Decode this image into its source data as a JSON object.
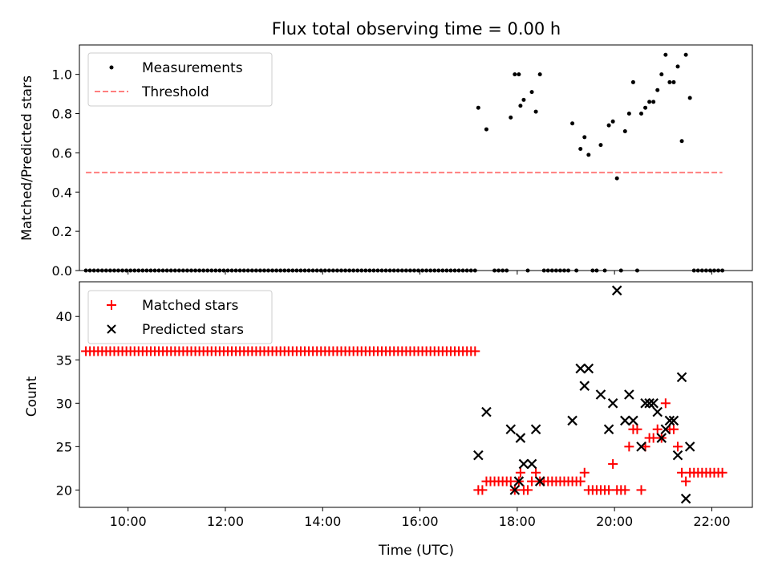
{
  "chart_data": [
    {
      "type": "scatter",
      "title": "Flux total observing time = 0.00 h",
      "xlabel": "",
      "ylabel": "Matched/Predicted stars",
      "xlim": [
        "09:00",
        "22:50"
      ],
      "ylim": [
        0,
        1.15
      ],
      "yticks": [
        "0.0",
        "0.2",
        "0.4",
        "0.6",
        "0.8",
        "1.0"
      ],
      "grid": false,
      "legend_position": "top-left",
      "series": [
        {
          "name": "Measurements",
          "color": "#000000",
          "marker": "dot",
          "points": [
            [
              "09:08",
              0
            ],
            [
              "09:13",
              0
            ],
            [
              "09:18",
              0
            ],
            [
              "09:23",
              0
            ],
            [
              "09:28",
              0
            ],
            [
              "09:33",
              0
            ],
            [
              "09:38",
              0
            ],
            [
              "09:43",
              0
            ],
            [
              "09:48",
              0
            ],
            [
              "09:53",
              0
            ],
            [
              "09:58",
              0
            ],
            [
              "10:03",
              0
            ],
            [
              "10:08",
              0
            ],
            [
              "10:13",
              0
            ],
            [
              "10:18",
              0
            ],
            [
              "10:23",
              0
            ],
            [
              "10:28",
              0
            ],
            [
              "10:33",
              0
            ],
            [
              "10:38",
              0
            ],
            [
              "10:43",
              0
            ],
            [
              "10:48",
              0
            ],
            [
              "10:53",
              0
            ],
            [
              "10:58",
              0
            ],
            [
              "11:03",
              0
            ],
            [
              "11:08",
              0
            ],
            [
              "11:13",
              0
            ],
            [
              "11:18",
              0
            ],
            [
              "11:23",
              0
            ],
            [
              "11:28",
              0
            ],
            [
              "11:33",
              0
            ],
            [
              "11:38",
              0
            ],
            [
              "11:43",
              0
            ],
            [
              "11:48",
              0
            ],
            [
              "11:53",
              0
            ],
            [
              "11:58",
              0
            ],
            [
              "12:03",
              0
            ],
            [
              "12:08",
              0
            ],
            [
              "12:13",
              0
            ],
            [
              "12:18",
              0
            ],
            [
              "12:23",
              0
            ],
            [
              "12:28",
              0
            ],
            [
              "12:33",
              0
            ],
            [
              "12:38",
              0
            ],
            [
              "12:43",
              0
            ],
            [
              "12:48",
              0
            ],
            [
              "12:53",
              0
            ],
            [
              "12:58",
              0
            ],
            [
              "13:03",
              0
            ],
            [
              "13:08",
              0
            ],
            [
              "13:13",
              0
            ],
            [
              "13:18",
              0
            ],
            [
              "13:23",
              0
            ],
            [
              "13:28",
              0
            ],
            [
              "13:33",
              0
            ],
            [
              "13:38",
              0
            ],
            [
              "13:43",
              0
            ],
            [
              "13:48",
              0
            ],
            [
              "13:53",
              0
            ],
            [
              "13:58",
              0
            ],
            [
              "14:03",
              0
            ],
            [
              "14:08",
              0
            ],
            [
              "14:13",
              0
            ],
            [
              "14:18",
              0
            ],
            [
              "14:23",
              0
            ],
            [
              "14:28",
              0
            ],
            [
              "14:33",
              0
            ],
            [
              "14:38",
              0
            ],
            [
              "14:43",
              0
            ],
            [
              "14:48",
              0
            ],
            [
              "14:53",
              0
            ],
            [
              "14:58",
              0
            ],
            [
              "15:03",
              0
            ],
            [
              "15:08",
              0
            ],
            [
              "15:13",
              0
            ],
            [
              "15:18",
              0
            ],
            [
              "15:23",
              0
            ],
            [
              "15:28",
              0
            ],
            [
              "15:33",
              0
            ],
            [
              "15:38",
              0
            ],
            [
              "15:43",
              0
            ],
            [
              "15:48",
              0
            ],
            [
              "15:53",
              0
            ],
            [
              "15:58",
              0
            ],
            [
              "16:03",
              0
            ],
            [
              "16:08",
              0
            ],
            [
              "16:13",
              0
            ],
            [
              "16:18",
              0
            ],
            [
              "16:23",
              0
            ],
            [
              "16:28",
              0
            ],
            [
              "16:33",
              0
            ],
            [
              "16:38",
              0
            ],
            [
              "16:43",
              0
            ],
            [
              "16:48",
              0
            ],
            [
              "16:53",
              0
            ],
            [
              "16:58",
              0
            ],
            [
              "17:03",
              0
            ],
            [
              "17:08",
              0
            ],
            [
              "17:12",
              0.83
            ],
            [
              "17:22",
              0.72
            ],
            [
              "17:32",
              0
            ],
            [
              "17:37",
              0
            ],
            [
              "17:42",
              0
            ],
            [
              "17:47",
              0
            ],
            [
              "17:52",
              0.78
            ],
            [
              "17:57",
              1.0
            ],
            [
              "18:02",
              1.0
            ],
            [
              "18:04",
              0.84
            ],
            [
              "18:08",
              0.87
            ],
            [
              "18:13",
              0
            ],
            [
              "18:18",
              0.91
            ],
            [
              "18:23",
              0.81
            ],
            [
              "18:28",
              1.0
            ],
            [
              "18:33",
              0
            ],
            [
              "18:38",
              0
            ],
            [
              "18:43",
              0
            ],
            [
              "18:48",
              0
            ],
            [
              "18:53",
              0
            ],
            [
              "18:58",
              0
            ],
            [
              "19:03",
              0
            ],
            [
              "19:08",
              0.75
            ],
            [
              "19:13",
              0
            ],
            [
              "19:18",
              0.62
            ],
            [
              "19:23",
              0.68
            ],
            [
              "19:28",
              0.59
            ],
            [
              "19:33",
              0
            ],
            [
              "19:38",
              0
            ],
            [
              "19:43",
              0.64
            ],
            [
              "19:48",
              0
            ],
            [
              "19:53",
              0.74
            ],
            [
              "19:58",
              0.76
            ],
            [
              "20:03",
              0.47
            ],
            [
              "20:08",
              0
            ],
            [
              "20:13",
              0.71
            ],
            [
              "20:18",
              0.8
            ],
            [
              "20:23",
              0.96
            ],
            [
              "20:28",
              0
            ],
            [
              "20:33",
              0.8
            ],
            [
              "20:38",
              0.83
            ],
            [
              "20:43",
              0.86
            ],
            [
              "20:48",
              0.86
            ],
            [
              "20:53",
              0.92
            ],
            [
              "20:58",
              1.0
            ],
            [
              "21:03",
              1.1
            ],
            [
              "21:08",
              0.96
            ],
            [
              "21:13",
              0.96
            ],
            [
              "21:18",
              1.04
            ],
            [
              "21:23",
              0.66
            ],
            [
              "21:28",
              1.1
            ],
            [
              "21:33",
              0.88
            ],
            [
              "21:38",
              0
            ],
            [
              "21:43",
              0
            ],
            [
              "21:48",
              0
            ],
            [
              "21:53",
              0
            ],
            [
              "21:58",
              0
            ],
            [
              "22:03",
              0
            ],
            [
              "22:08",
              0
            ],
            [
              "22:13",
              0
            ]
          ]
        },
        {
          "name": "Threshold",
          "color": "#ff7f7f",
          "style": "dashed",
          "x": [
            "09:08",
            "22:13"
          ],
          "values": [
            0.5,
            0.5
          ]
        }
      ]
    },
    {
      "type": "scatter",
      "title": "",
      "xlabel": "Time (UTC)",
      "ylabel": "Count",
      "xlim": [
        "09:00",
        "22:50"
      ],
      "ylim": [
        18,
        44
      ],
      "xticks": [
        "10:00",
        "12:00",
        "14:00",
        "16:00",
        "18:00",
        "20:00",
        "22:00"
      ],
      "yticks": [
        "20",
        "25",
        "30",
        "35",
        "40"
      ],
      "grid": false,
      "legend_position": "top-left",
      "series": [
        {
          "name": "Matched stars",
          "color": "#ff0000",
          "marker": "plus",
          "points_note": "constant 36 from 09:08 to 17:08",
          "const_run": {
            "start": "09:08",
            "end": "17:08",
            "step_minutes": 5,
            "value": 36
          },
          "points": [
            [
              "17:12",
              20
            ],
            [
              "17:17",
              20
            ],
            [
              "17:22",
              21
            ],
            [
              "17:27",
              21
            ],
            [
              "17:32",
              21
            ],
            [
              "17:37",
              21
            ],
            [
              "17:42",
              21
            ],
            [
              "17:47",
              21
            ],
            [
              "17:52",
              21
            ],
            [
              "17:57",
              20
            ],
            [
              "18:02",
              21
            ],
            [
              "18:04",
              22
            ],
            [
              "18:08",
              20
            ],
            [
              "18:13",
              20
            ],
            [
              "18:18",
              21
            ],
            [
              "18:23",
              22
            ],
            [
              "18:28",
              21
            ],
            [
              "18:33",
              21
            ],
            [
              "18:38",
              21
            ],
            [
              "18:43",
              21
            ],
            [
              "18:48",
              21
            ],
            [
              "18:53",
              21
            ],
            [
              "18:58",
              21
            ],
            [
              "19:03",
              21
            ],
            [
              "19:08",
              21
            ],
            [
              "19:13",
              21
            ],
            [
              "19:18",
              21
            ],
            [
              "19:23",
              22
            ],
            [
              "19:28",
              20
            ],
            [
              "19:33",
              20
            ],
            [
              "19:38",
              20
            ],
            [
              "19:43",
              20
            ],
            [
              "19:48",
              20
            ],
            [
              "19:53",
              20
            ],
            [
              "19:58",
              23
            ],
            [
              "20:03",
              20
            ],
            [
              "20:08",
              20
            ],
            [
              "20:13",
              20
            ],
            [
              "20:18",
              25
            ],
            [
              "20:23",
              27
            ],
            [
              "20:28",
              27
            ],
            [
              "20:33",
              20
            ],
            [
              "20:38",
              25
            ],
            [
              "20:43",
              26
            ],
            [
              "20:48",
              26
            ],
            [
              "20:53",
              27
            ],
            [
              "20:58",
              26
            ],
            [
              "21:03",
              30
            ],
            [
              "21:08",
              27
            ],
            [
              "21:13",
              27
            ],
            [
              "21:18",
              25
            ],
            [
              "21:23",
              22
            ],
            [
              "21:28",
              21
            ],
            [
              "21:33",
              22
            ],
            [
              "21:38",
              22
            ],
            [
              "21:43",
              22
            ],
            [
              "21:48",
              22
            ],
            [
              "21:53",
              22
            ],
            [
              "21:58",
              22
            ],
            [
              "22:03",
              22
            ],
            [
              "22:08",
              22
            ],
            [
              "22:13",
              22
            ]
          ]
        },
        {
          "name": "Predicted stars",
          "color": "#000000",
          "marker": "x",
          "points": [
            [
              "17:12",
              24
            ],
            [
              "17:22",
              29
            ],
            [
              "17:52",
              27
            ],
            [
              "17:57",
              20
            ],
            [
              "18:02",
              21
            ],
            [
              "18:04",
              26
            ],
            [
              "18:08",
              23
            ],
            [
              "18:18",
              23
            ],
            [
              "18:23",
              27
            ],
            [
              "18:28",
              21
            ],
            [
              "19:08",
              28
            ],
            [
              "19:18",
              34
            ],
            [
              "19:23",
              32
            ],
            [
              "19:28",
              34
            ],
            [
              "19:43",
              31
            ],
            [
              "19:53",
              27
            ],
            [
              "19:58",
              30
            ],
            [
              "20:03",
              43
            ],
            [
              "20:13",
              28
            ],
            [
              "20:18",
              31
            ],
            [
              "20:23",
              28
            ],
            [
              "20:33",
              25
            ],
            [
              "20:38",
              30
            ],
            [
              "20:43",
              30
            ],
            [
              "20:48",
              30
            ],
            [
              "20:53",
              29
            ],
            [
              "20:58",
              26
            ],
            [
              "21:03",
              27
            ],
            [
              "21:08",
              28
            ],
            [
              "21:13",
              28
            ],
            [
              "21:18",
              24
            ],
            [
              "21:23",
              33
            ],
            [
              "21:28",
              19
            ],
            [
              "21:33",
              25
            ]
          ]
        }
      ]
    }
  ]
}
